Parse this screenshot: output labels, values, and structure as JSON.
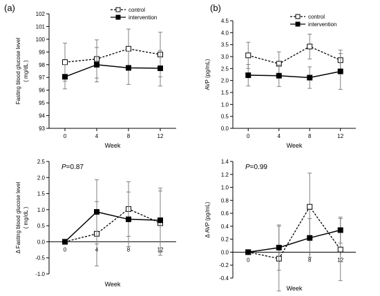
{
  "panel_labels": [
    "(a)",
    "(b)"
  ],
  "colors": {
    "axis": "#000000",
    "line": "#000000",
    "marker_open_fill": "#ffffff",
    "marker_filled": "#000000",
    "errorbar": "#808080"
  },
  "chart_data": [
    {
      "type": "line",
      "panel": "(a)",
      "xlabel": "Week",
      "ylabel": "Fasting blood glucose level\n( mg/dL )",
      "x": [
        0,
        4,
        8,
        12
      ],
      "xlim": [
        -2,
        14
      ],
      "ylim": [
        93,
        102
      ],
      "yticks": [
        93,
        94,
        95,
        96,
        97,
        98,
        99,
        100,
        101,
        102
      ],
      "ytick_labels": [
        "93",
        "94",
        "95",
        "96",
        "97",
        "98",
        "99",
        "100",
        "101",
        "102"
      ],
      "x_axis_at": 93,
      "grid": false,
      "legend": "top-right",
      "series": [
        {
          "name": "control",
          "style": "dashed",
          "marker": "open-square",
          "values": [
            98.2,
            98.45,
            99.25,
            98.8
          ],
          "err": [
            1.5,
            1.5,
            1.55,
            1.75
          ]
        },
        {
          "name": "intervention",
          "style": "solid",
          "marker": "filled-square",
          "values": [
            97.05,
            98.0,
            97.75,
            97.72
          ],
          "err": [
            0.95,
            1.35,
            1.3,
            1.4
          ]
        }
      ]
    },
    {
      "type": "line",
      "panel": "(b)",
      "xlabel": "Week",
      "ylabel": "AVP (pg/mL)",
      "x": [
        0,
        4,
        8,
        12
      ],
      "xlim": [
        -2,
        14
      ],
      "ylim": [
        0,
        4.5
      ],
      "yticks": [
        0,
        0.5,
        1,
        1.5,
        2,
        2.5,
        3,
        3.5,
        4,
        4.5
      ],
      "ytick_labels": [
        "0.0",
        "0.5",
        "1.0",
        "1.5",
        "2.0",
        "2.5",
        "3.0",
        "3.5",
        "4.0",
        "4.5"
      ],
      "x_axis_at": 0,
      "grid": false,
      "legend": "top-right",
      "series": [
        {
          "name": "control",
          "style": "dashed",
          "marker": "open-square",
          "values": [
            3.05,
            2.7,
            3.42,
            2.85
          ],
          "err": [
            0.55,
            0.5,
            0.52,
            0.42
          ]
        },
        {
          "name": "intervention",
          "style": "solid",
          "marker": "filled-square",
          "values": [
            2.22,
            2.2,
            2.12,
            2.38
          ],
          "err": [
            0.45,
            0.45,
            0.45,
            0.75
          ]
        }
      ]
    },
    {
      "type": "line",
      "panel": "(a)",
      "annotation": {
        "p_label": "P",
        "p_value": "=0.87"
      },
      "xlabel": "Week",
      "ylabel": "Δ Fasting blood glucose level\n( mg/dL )",
      "x": [
        0,
        4,
        8,
        12
      ],
      "xlim": [
        -2,
        14
      ],
      "ylim": [
        -1,
        2.5
      ],
      "yticks": [
        -1,
        -0.5,
        0,
        0.5,
        1,
        1.5,
        2,
        2.5
      ],
      "ytick_labels": [
        "-1.0",
        "-0.5",
        "0.0",
        "0.5",
        "1.0",
        "1.5",
        "2.0",
        "2.5"
      ],
      "x_axis_at": 0,
      "xtick_labels": [
        "0",
        "4",
        "8",
        "12"
      ],
      "grid": false,
      "legend": "none",
      "series": [
        {
          "name": "",
          "style": "dashed",
          "marker": "open-square",
          "values": [
            0,
            0.25,
            1.02,
            0.58
          ],
          "err": [
            0,
            1.0,
            0.85,
            1.0
          ]
        },
        {
          "name": "",
          "style": "solid",
          "marker": "filled-square",
          "values": [
            0,
            0.93,
            0.7,
            0.67
          ],
          "err": [
            0,
            1.0,
            0.85,
            1.0
          ]
        }
      ]
    },
    {
      "type": "line",
      "panel": "(b)",
      "annotation": {
        "p_label": "P",
        "p_value": "=0.99"
      },
      "xlabel": "Week",
      "ylabel": "Δ AVP (pg/mL)",
      "x": [
        0,
        4,
        8,
        12
      ],
      "xlim": [
        -2,
        14
      ],
      "ylim": [
        -0.4,
        1.4
      ],
      "yticks": [
        -0.4,
        -0.2,
        0,
        0.2,
        0.4,
        0.6,
        0.8,
        1,
        1.2,
        1.4
      ],
      "ytick_labels": [
        "-0.4",
        "-0.2",
        "0.0",
        "0.2",
        "0.4",
        "0.6",
        "0.8",
        "1.0",
        "1.2",
        "1.4"
      ],
      "x_axis_at": 0,
      "xtick_labels": [
        "0",
        "4",
        "8",
        "12"
      ],
      "grid": false,
      "legend": "none",
      "series": [
        {
          "name": "",
          "style": "dashed",
          "marker": "open-square",
          "values": [
            0,
            -0.1,
            0.7,
            0.04
          ],
          "err": [
            0,
            0.5,
            0.52,
            0.48
          ]
        },
        {
          "name": "",
          "style": "solid",
          "marker": "filled-square",
          "values": [
            0,
            0.07,
            0.22,
            0.34
          ],
          "err": [
            0,
            0.35,
            0.3,
            0.2
          ]
        }
      ]
    }
  ]
}
